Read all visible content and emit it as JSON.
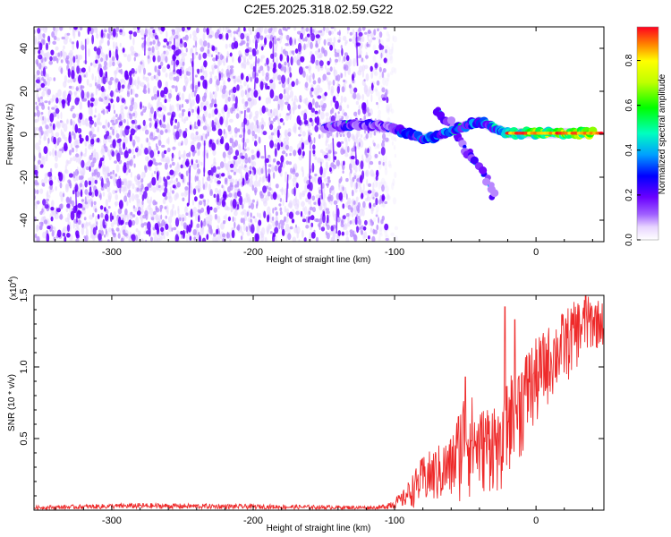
{
  "title": "C2E5.2025.318.02.59.G22",
  "chart_data": [
    {
      "type": "heatmap",
      "name": "spectrogram",
      "xlabel": "Height of straight line (km)",
      "ylabel": "Frequency (Hz)",
      "xlim": [
        -355,
        48
      ],
      "ylim": [
        -50,
        50
      ],
      "xticks": [
        -300,
        -200,
        -100,
        0
      ],
      "yticks": [
        -40,
        -20,
        0,
        20,
        40
      ],
      "noise_region_x": [
        -355,
        -105
      ],
      "signal_track": [
        {
          "x": -150,
          "y": 3.0,
          "a": 0.35
        },
        {
          "x": -140,
          "y": 4.0,
          "a": 0.4
        },
        {
          "x": -130,
          "y": 4.5,
          "a": 0.45
        },
        {
          "x": -120,
          "y": 4.5,
          "a": 0.45
        },
        {
          "x": -110,
          "y": 4.0,
          "a": 0.35
        },
        {
          "x": -100,
          "y": 2.5,
          "a": 0.45
        },
        {
          "x": -90,
          "y": 0.5,
          "a": 0.5
        },
        {
          "x": -80,
          "y": -2.0,
          "a": 0.55
        },
        {
          "x": -70,
          "y": -1.0,
          "a": 0.5
        },
        {
          "x": -60,
          "y": 1.5,
          "a": 0.55
        },
        {
          "x": -50,
          "y": 4.0,
          "a": 0.5
        },
        {
          "x": -40,
          "y": 6.0,
          "a": 0.55
        },
        {
          "x": -30,
          "y": 3.0,
          "a": 0.5
        },
        {
          "x": -20,
          "y": 0.5,
          "a": 0.7
        },
        {
          "x": -10,
          "y": 0.5,
          "a": 0.75
        },
        {
          "x": 0,
          "y": 0.5,
          "a": 0.8
        },
        {
          "x": 10,
          "y": 0.5,
          "a": 0.82
        },
        {
          "x": 20,
          "y": 0.5,
          "a": 0.85
        },
        {
          "x": 30,
          "y": 0.5,
          "a": 0.87
        },
        {
          "x": 40,
          "y": 0.5,
          "a": 0.9
        }
      ],
      "secondary_track": [
        {
          "x": -70,
          "y": 10.0,
          "a": 0.35
        },
        {
          "x": -60,
          "y": 5.0,
          "a": 0.35
        },
        {
          "x": -50,
          "y": -7.0,
          "a": 0.4
        },
        {
          "x": -40,
          "y": -15.0,
          "a": 0.4
        },
        {
          "x": -30,
          "y": -28.0,
          "a": 0.25
        }
      ]
    },
    {
      "type": "colorbar",
      "label": "Normalized spectral amplitude",
      "range": [
        0.0,
        0.95
      ],
      "ticks": [
        "0.0",
        "0.2",
        "0.4",
        "0.6",
        "0.8"
      ],
      "tick_values": [
        0.0,
        0.2,
        0.4,
        0.6,
        0.8
      ]
    },
    {
      "type": "line",
      "name": "snr",
      "xlabel": "Height of straight line (km)",
      "ylabel": "SNR (10 * v/v)",
      "scale_label": "(x10",
      "scale_exponent": "4",
      "scale_close": ")",
      "xlim": [
        -355,
        48
      ],
      "ylim": [
        0,
        1.5
      ],
      "xticks": [
        -300,
        -200,
        -100,
        0
      ],
      "yticks": [
        0.5,
        1.0,
        1.5
      ],
      "ytick_labels": [
        "0.5",
        "1.0",
        "1.5"
      ],
      "color": "#ee2a2a",
      "envelope": [
        {
          "x": -355,
          "lo": 0.005,
          "hi": 0.03
        },
        {
          "x": -280,
          "lo": 0.01,
          "hi": 0.05
        },
        {
          "x": -110,
          "lo": 0.005,
          "hi": 0.03
        },
        {
          "x": -95,
          "lo": 0.01,
          "hi": 0.12
        },
        {
          "x": -80,
          "lo": 0.02,
          "hi": 0.38
        },
        {
          "x": -60,
          "lo": 0.03,
          "hi": 0.52
        },
        {
          "x": -50,
          "lo": 0.05,
          "hi": 0.9
        },
        {
          "x": -40,
          "lo": 0.1,
          "hi": 0.7
        },
        {
          "x": -30,
          "lo": 0.12,
          "hi": 0.8
        },
        {
          "x": -25,
          "lo": 0.1,
          "hi": 0.6
        },
        {
          "x": -20,
          "lo": 0.2,
          "hi": 0.95
        },
        {
          "x": -10,
          "lo": 0.35,
          "hi": 1.1
        },
        {
          "x": 0,
          "lo": 0.55,
          "hi": 1.2
        },
        {
          "x": 10,
          "lo": 0.75,
          "hi": 1.3
        },
        {
          "x": 20,
          "lo": 0.85,
          "hi": 1.4
        },
        {
          "x": 30,
          "lo": 1.0,
          "hi": 1.48
        },
        {
          "x": 40,
          "lo": 1.1,
          "hi": 1.5
        },
        {
          "x": 48,
          "lo": 1.15,
          "hi": 1.45
        }
      ],
      "spikes": [
        {
          "x": -50,
          "y": 0.93
        },
        {
          "x": -22,
          "y": 1.42
        },
        {
          "x": -15,
          "y": 1.33
        },
        {
          "x": -5,
          "y": 1.1
        },
        {
          "x": 35,
          "y": 1.55
        }
      ]
    }
  ]
}
